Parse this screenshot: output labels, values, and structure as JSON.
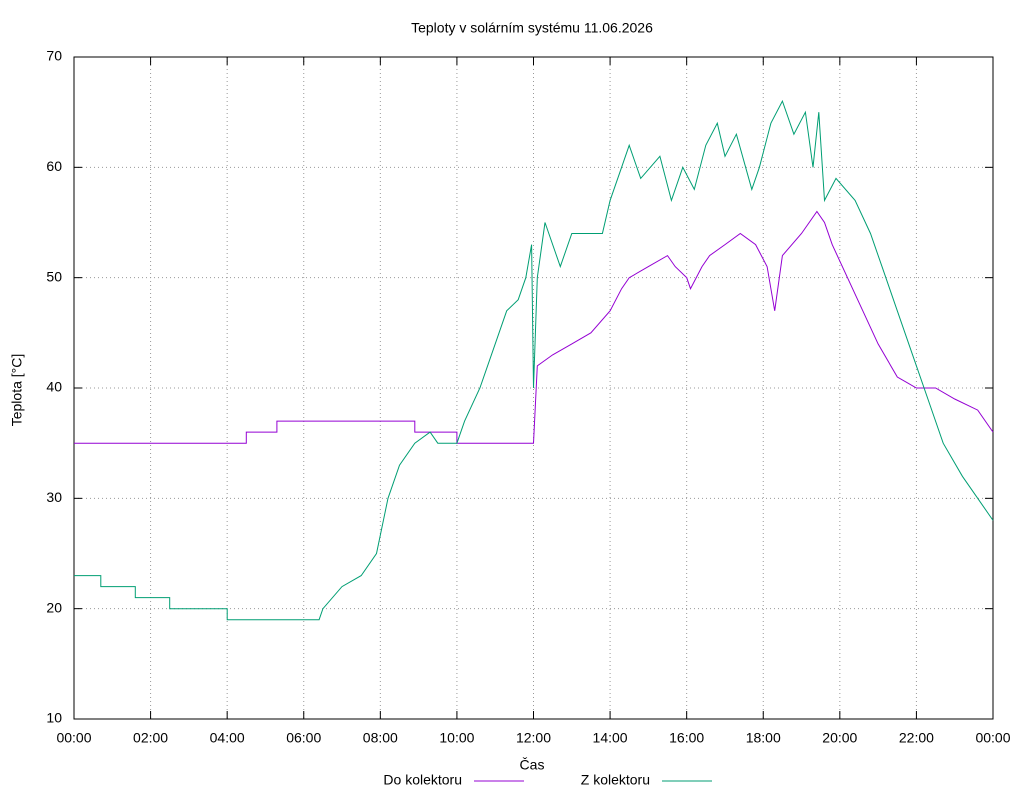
{
  "chart_data": {
    "type": "line",
    "title": "Teploty v solárním systému 11.06.2026",
    "xlabel": "Čas",
    "ylabel": "Teplota [°C]",
    "xlim": [
      0,
      24
    ],
    "ylim": [
      10,
      70
    ],
    "xticks": [
      {
        "value": 0,
        "label": "00:00"
      },
      {
        "value": 2,
        "label": "02:00"
      },
      {
        "value": 4,
        "label": "04:00"
      },
      {
        "value": 6,
        "label": "06:00"
      },
      {
        "value": 8,
        "label": "08:00"
      },
      {
        "value": 10,
        "label": "10:00"
      },
      {
        "value": 12,
        "label": "12:00"
      },
      {
        "value": 14,
        "label": "14:00"
      },
      {
        "value": 16,
        "label": "16:00"
      },
      {
        "value": 18,
        "label": "18:00"
      },
      {
        "value": 20,
        "label": "20:00"
      },
      {
        "value": 22,
        "label": "22:00"
      },
      {
        "value": 24,
        "label": "00:00"
      }
    ],
    "yticks": [
      10,
      20,
      30,
      40,
      50,
      60,
      70
    ],
    "grid": true,
    "legend": "bottom",
    "series": [
      {
        "name": "Do kolektoru",
        "color": "#9400d3",
        "x": [
          0,
          4.5,
          4.5,
          5.3,
          5.3,
          8.9,
          8.9,
          10,
          10,
          12,
          12.1,
          12.5,
          13,
          13.5,
          14,
          14.3,
          14.5,
          15,
          15.5,
          15.7,
          16,
          16.1,
          16.4,
          16.6,
          17,
          17.4,
          17.8,
          18.1,
          18.3,
          18.5,
          19,
          19.4,
          19.6,
          19.8,
          20.2,
          20.6,
          21,
          21.5,
          22,
          22.5,
          23,
          23.6,
          24
        ],
        "values": [
          35,
          35,
          36,
          36,
          37,
          37,
          36,
          36,
          35,
          35,
          42,
          43,
          44,
          45,
          47,
          49,
          50,
          51,
          52,
          51,
          50,
          49,
          51,
          52,
          53,
          54,
          53,
          51,
          47,
          52,
          54,
          56,
          55,
          53,
          50,
          47,
          44,
          41,
          40,
          40,
          39,
          38,
          36
        ]
      },
      {
        "name": "Z kolektoru",
        "color": "#009e73",
        "x": [
          0,
          0.7,
          0.7,
          1.6,
          1.6,
          2.5,
          2.5,
          4,
          4,
          6.4,
          6.5,
          7,
          7.5,
          7.9,
          8.2,
          8.5,
          8.9,
          9.3,
          9.5,
          10,
          10.2,
          10.6,
          11,
          11.3,
          11.6,
          11.8,
          11.95,
          12.0,
          12.1,
          12.3,
          12.7,
          13,
          13.8,
          14,
          14.3,
          14.5,
          14.8,
          15.3,
          15.6,
          15.9,
          16.2,
          16.5,
          16.8,
          17,
          17.3,
          17.7,
          17.9,
          18.2,
          18.5,
          18.8,
          19.1,
          19.3,
          19.45,
          19.6,
          19.9,
          20.4,
          20.8,
          21.1,
          21.5,
          21.9,
          22.3,
          22.7,
          23.2,
          23.6,
          24
        ],
        "values": [
          23,
          23,
          22,
          22,
          21,
          21,
          20,
          20,
          19,
          19,
          20,
          22,
          23,
          25,
          30,
          33,
          35,
          36,
          35,
          35,
          37,
          40,
          44,
          47,
          48,
          50,
          53,
          40,
          50,
          55,
          51,
          54,
          54,
          57,
          60,
          62,
          59,
          61,
          57,
          60,
          58,
          62,
          64,
          61,
          63,
          58,
          60,
          64,
          66,
          63,
          65,
          60,
          65,
          57,
          59,
          57,
          54,
          51,
          47,
          43,
          39,
          35,
          32,
          30,
          28
        ]
      }
    ]
  }
}
